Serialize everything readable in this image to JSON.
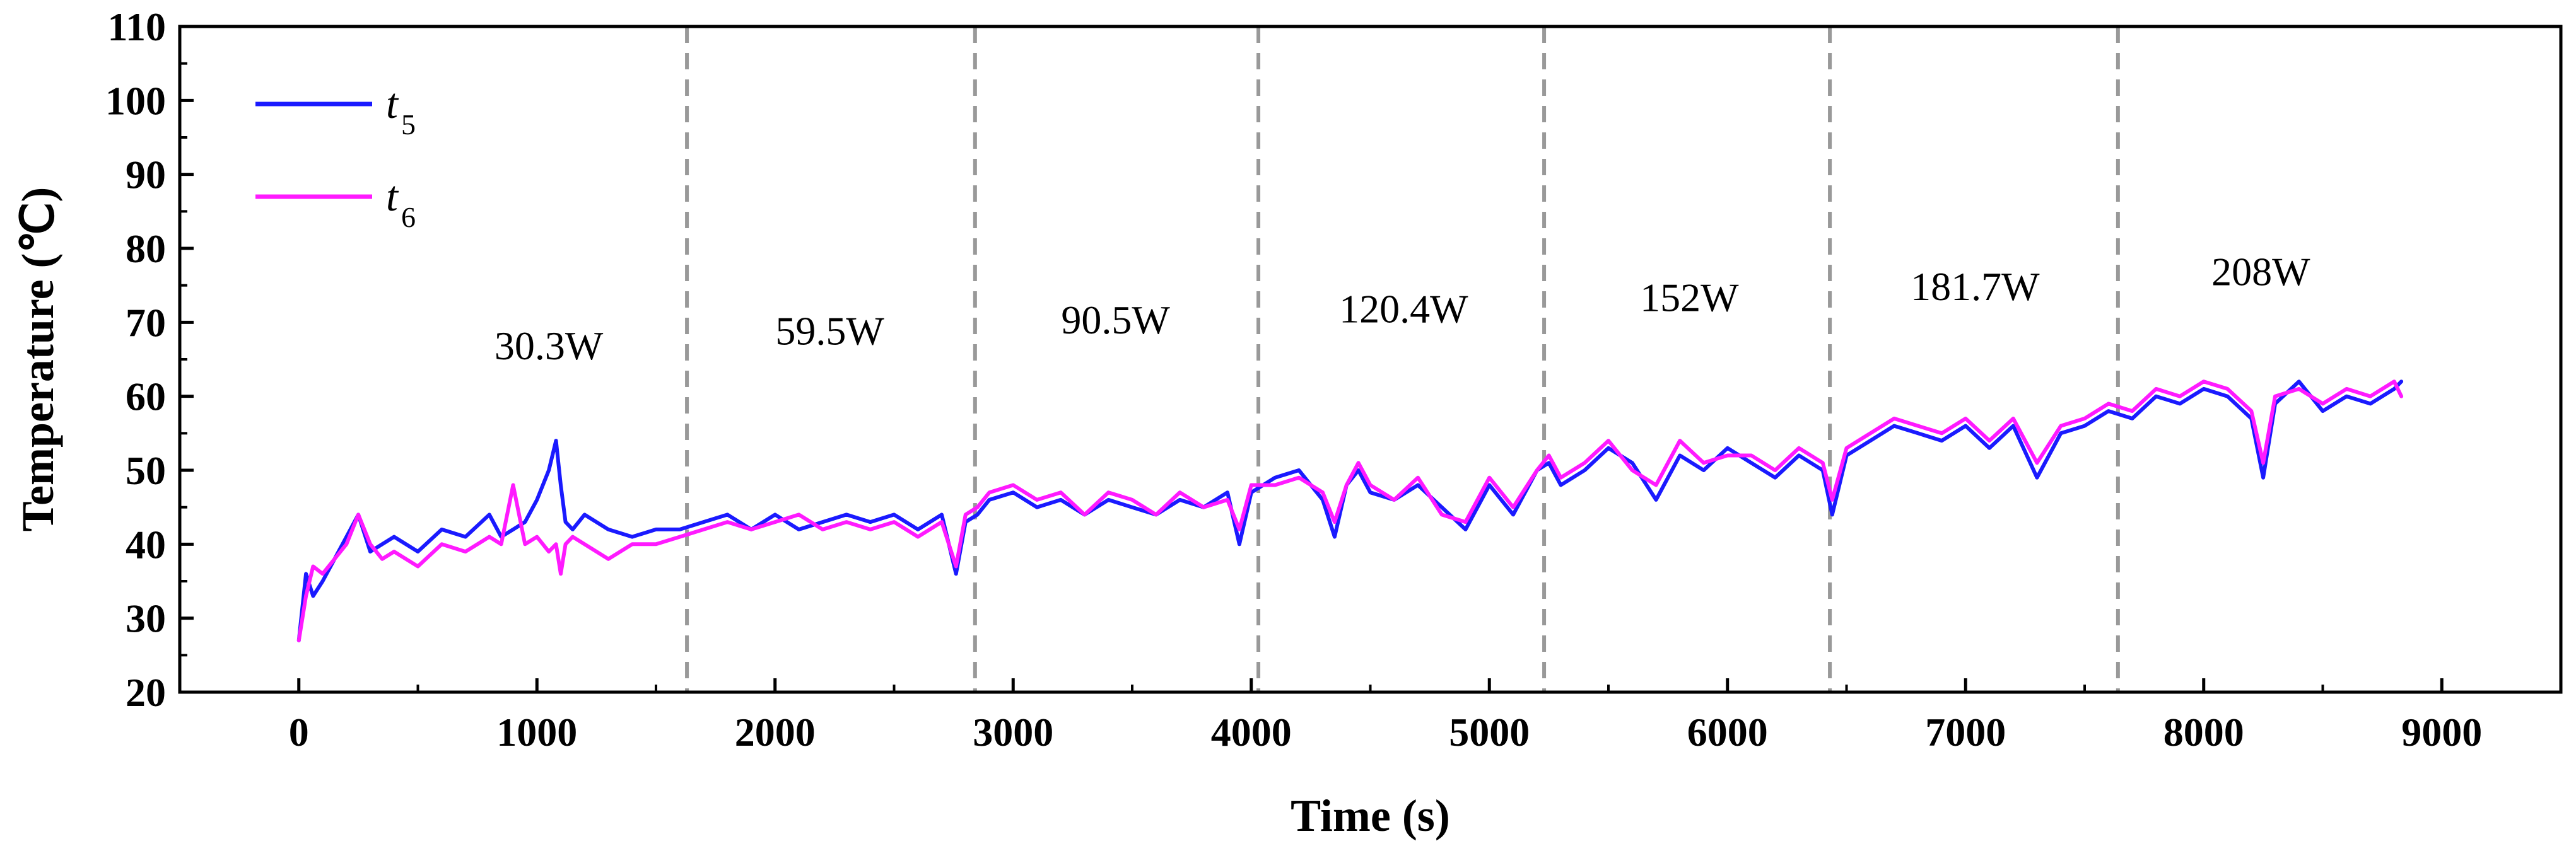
{
  "chart_data": {
    "type": "line",
    "xlabel": "Time (s)",
    "ylabel": "Temperature (℃)",
    "xlim": [
      -500,
      9500
    ],
    "ylim": [
      20,
      110
    ],
    "xticks": [
      0,
      1000,
      2000,
      3000,
      4000,
      5000,
      6000,
      7000,
      8000,
      9000
    ],
    "xtick_labels": [
      "0",
      "1000",
      "2000",
      "3000",
      "4000",
      "5000",
      "6000",
      "7000",
      "8000",
      "9000"
    ],
    "yticks": [
      20,
      30,
      40,
      50,
      60,
      70,
      80,
      90,
      100,
      110
    ],
    "ytick_labels": [
      "20",
      "30",
      "40",
      "50",
      "60",
      "70",
      "80",
      "90",
      "100",
      "110"
    ],
    "legend_placement": "top-left",
    "grid": false,
    "stage_boundaries": [
      1630,
      2840,
      4030,
      5230,
      6430,
      7640
    ],
    "power_labels": [
      {
        "label": "30.3W",
        "x": 1050,
        "y": 65
      },
      {
        "label": "59.5W",
        "x": 2230,
        "y": 67
      },
      {
        "label": "90.5W",
        "x": 3430,
        "y": 68.5
      },
      {
        "label": "120.4W",
        "x": 4640,
        "y": 70
      },
      {
        "label": "152W",
        "x": 5840,
        "y": 71.5
      },
      {
        "label": "181.7W",
        "x": 7040,
        "y": 73
      },
      {
        "label": "208W",
        "x": 8240,
        "y": 75
      }
    ],
    "series": [
      {
        "name": "t5",
        "label_main": "t",
        "label_sub": "5",
        "color": "#1a1aff",
        "x": [
          0,
          30,
          60,
          100,
          150,
          200,
          250,
          300,
          350,
          400,
          500,
          600,
          700,
          800,
          850,
          900,
          950,
          1000,
          1050,
          1080,
          1100,
          1120,
          1150,
          1200,
          1300,
          1400,
          1500,
          1600,
          1700,
          1800,
          1900,
          2000,
          2100,
          2200,
          2300,
          2400,
          2500,
          2600,
          2700,
          2760,
          2800,
          2850,
          2900,
          3000,
          3100,
          3200,
          3300,
          3400,
          3500,
          3600,
          3700,
          3800,
          3900,
          3950,
          4000,
          4100,
          4200,
          4300,
          4350,
          4400,
          4450,
          4500,
          4600,
          4700,
          4800,
          4900,
          5000,
          5100,
          5200,
          5250,
          5300,
          5400,
          5500,
          5600,
          5700,
          5800,
          5900,
          6000,
          6100,
          6200,
          6300,
          6400,
          6440,
          6500,
          6600,
          6700,
          6800,
          6900,
          7000,
          7100,
          7200,
          7300,
          7400,
          7500,
          7600,
          7700,
          7800,
          7900,
          8000,
          8100,
          8200,
          8250,
          8300,
          8400,
          8500,
          8600,
          8700,
          8800,
          8830
        ],
        "y": [
          27,
          36,
          33,
          35,
          38,
          41,
          44,
          39,
          40,
          41,
          39,
          42,
          41,
          44,
          41,
          42,
          43,
          46,
          50,
          54,
          48,
          43,
          42,
          44,
          42,
          41,
          42,
          42,
          43,
          44,
          42,
          44,
          42,
          43,
          44,
          43,
          44,
          42,
          44,
          36,
          43,
          44,
          46,
          47,
          45,
          46,
          44,
          46,
          45,
          44,
          46,
          45,
          47,
          40,
          47,
          49,
          50,
          46,
          41,
          48,
          50,
          47,
          46,
          48,
          45,
          42,
          48,
          44,
          50,
          51,
          48,
          50,
          53,
          51,
          46,
          52,
          50,
          53,
          51,
          49,
          52,
          50,
          44,
          52,
          54,
          56,
          55,
          54,
          56,
          53,
          56,
          49,
          55,
          56,
          58,
          57,
          60,
          59,
          61,
          60,
          57,
          49,
          59,
          62,
          58,
          60,
          59,
          61,
          62
        ]
      },
      {
        "name": "t6",
        "label_main": "t",
        "label_sub": "6",
        "color": "#ff1aff",
        "x": [
          0,
          30,
          60,
          100,
          150,
          200,
          250,
          300,
          350,
          400,
          500,
          600,
          700,
          800,
          850,
          900,
          950,
          1000,
          1050,
          1080,
          1100,
          1120,
          1150,
          1200,
          1300,
          1400,
          1500,
          1600,
          1700,
          1800,
          1900,
          2000,
          2100,
          2200,
          2300,
          2400,
          2500,
          2600,
          2700,
          2760,
          2800,
          2850,
          2900,
          3000,
          3100,
          3200,
          3300,
          3400,
          3500,
          3600,
          3700,
          3800,
          3900,
          3950,
          4000,
          4100,
          4200,
          4300,
          4350,
          4400,
          4450,
          4500,
          4600,
          4700,
          4800,
          4900,
          5000,
          5100,
          5200,
          5250,
          5300,
          5400,
          5500,
          5600,
          5700,
          5800,
          5900,
          6000,
          6100,
          6200,
          6300,
          6400,
          6440,
          6500,
          6600,
          6700,
          6800,
          6900,
          7000,
          7100,
          7200,
          7300,
          7400,
          7500,
          7600,
          7700,
          7800,
          7900,
          8000,
          8100,
          8200,
          8250,
          8300,
          8400,
          8500,
          8600,
          8700,
          8800,
          8830
        ],
        "y": [
          27,
          33,
          37,
          36,
          38,
          40,
          44,
          40,
          38,
          39,
          37,
          40,
          39,
          41,
          40,
          48,
          40,
          41,
          39,
          40,
          36,
          40,
          41,
          40,
          38,
          40,
          40,
          41,
          42,
          43,
          42,
          43,
          44,
          42,
          43,
          42,
          43,
          41,
          43,
          37,
          44,
          45,
          47,
          48,
          46,
          47,
          44,
          47,
          46,
          44,
          47,
          45,
          46,
          42,
          48,
          48,
          49,
          47,
          43,
          48,
          51,
          48,
          46,
          49,
          44,
          43,
          49,
          45,
          50,
          52,
          49,
          51,
          54,
          50,
          48,
          54,
          51,
          52,
          52,
          50,
          53,
          51,
          46,
          53,
          55,
          57,
          56,
          55,
          57,
          54,
          57,
          51,
          56,
          57,
          59,
          58,
          61,
          60,
          62,
          61,
          58,
          51,
          60,
          61,
          59,
          61,
          60,
          62,
          60
        ]
      }
    ]
  }
}
